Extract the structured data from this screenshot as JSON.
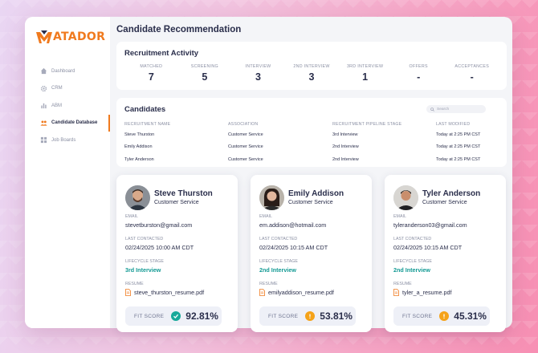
{
  "brand": {
    "name": "ATADOR",
    "accent": "#f07a1e"
  },
  "sidebar": {
    "items": [
      {
        "label": "Dashboard",
        "icon": "home-icon",
        "active": false
      },
      {
        "label": "CRM",
        "icon": "gear-icon",
        "active": false
      },
      {
        "label": "ABM",
        "icon": "bar-chart-icon",
        "active": false
      },
      {
        "label": "Candidate Database",
        "icon": "people-icon",
        "active": true
      },
      {
        "label": "Job Boards",
        "icon": "grid-icon",
        "active": false
      }
    ]
  },
  "page": {
    "title": "Candidate Recommendation"
  },
  "activity": {
    "title": "Recruitment Activity",
    "stats": [
      {
        "label": "MATCHED",
        "value": "7"
      },
      {
        "label": "SCREENING",
        "value": "5"
      },
      {
        "label": "INTERVIEW",
        "value": "3"
      },
      {
        "label": "2ND INTERVIEW",
        "value": "3"
      },
      {
        "label": "3RD INTERVIEW",
        "value": "1"
      },
      {
        "label": "OFFERS",
        "value": "-"
      },
      {
        "label": "ACCEPTANCES",
        "value": "-"
      }
    ]
  },
  "candidates": {
    "title": "Candidates",
    "search_placeholder": "Search",
    "columns": [
      "RECRUITMENT NAME",
      "ASSOCIATION",
      "RECRUITMENT PIPELINE STAGE",
      "LAST MODIFIED"
    ],
    "rows": [
      [
        "Steve Thurston",
        "Customer Service",
        "3rd Interview",
        "Today at 2:25 PM CST"
      ],
      [
        "Emily Addison",
        "Customer Service",
        "2nd Interview",
        "Today at 2:25 PM CST"
      ],
      [
        "Tyler Anderson",
        "Customer Service",
        "2nd Interview",
        "Today at 2:25 PM CST"
      ]
    ]
  },
  "labels": {
    "email": "EMAIL",
    "last_contacted": "LAST CONTACTED",
    "lifecycle": "LIFECYCLE STAGE",
    "resume": "RESUME",
    "fit": "FIT SCORE"
  },
  "profiles": [
    {
      "name": "Steve Thurston",
      "association": "Customer Service",
      "email": "stevetburston@gmail.com",
      "last_contacted": "02/24/2025 10:00 AM CDT",
      "stage": "3rd Interview",
      "resume": "steve_thurston_resume.pdf",
      "fit_score": "92.81%",
      "fit_status": "check-circle-icon",
      "fit_color": "#18a99a"
    },
    {
      "name": "Emily Addison",
      "association": "Customer Service",
      "email": "em.addison@hotmail.com",
      "last_contacted": "02/24/2025 10:15 AM CDT",
      "stage": "2nd Interview",
      "resume": "emilyaddison_resume.pdf",
      "fit_score": "53.81%",
      "fit_status": "alert-circle-icon",
      "fit_color": "#f5a31a"
    },
    {
      "name": "Tyler Anderson",
      "association": "Customer Service",
      "email": "tyleranderson03@gmail.com",
      "last_contacted": "02/24/2025 10:15 AM CDT",
      "stage": "2nd Interview",
      "resume": "tyler_a_resume.pdf",
      "fit_score": "45.31%",
      "fit_status": "alert-circle-icon",
      "fit_color": "#f5a31a"
    }
  ]
}
